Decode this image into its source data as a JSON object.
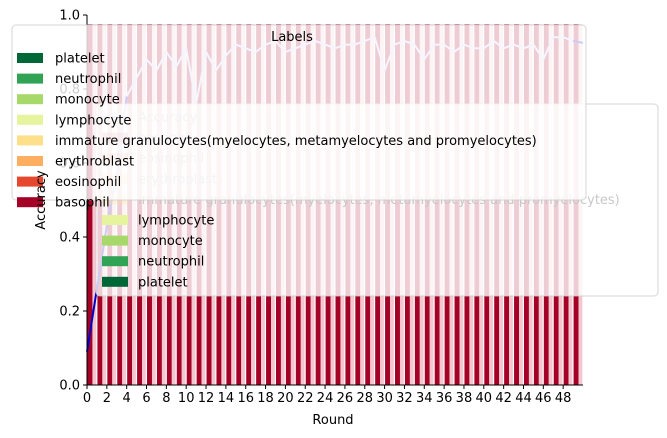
{
  "chart_data": {
    "type": "bar",
    "xlabel": "Round",
    "ylabel": "Accuracy",
    "xlim": [
      0,
      50
    ],
    "ylim": [
      0,
      1
    ],
    "x_ticks": [
      0,
      2,
      4,
      6,
      8,
      10,
      12,
      14,
      16,
      18,
      20,
      22,
      24,
      26,
      28,
      30,
      32,
      34,
      36,
      38,
      40,
      42,
      44,
      46,
      48
    ],
    "y_ticks": [
      0,
      0.2,
      0.4,
      0.6,
      0.8,
      1.0
    ],
    "y_tick_labels": [
      "0.0",
      "0.2",
      "0.4",
      "0.6",
      "0.8",
      "1.0"
    ],
    "rounds": [
      0,
      1,
      2,
      3,
      4,
      5,
      6,
      7,
      8,
      9,
      10,
      11,
      12,
      13,
      14,
      15,
      16,
      17,
      18,
      19,
      20,
      21,
      22,
      23,
      24,
      25,
      26,
      27,
      28,
      29,
      30,
      31,
      32,
      33,
      34,
      35,
      36,
      37,
      38,
      39,
      40,
      41,
      42,
      43,
      44,
      45,
      46,
      47,
      48,
      49
    ],
    "series": [
      {
        "name": "basophil",
        "color": "#a50026",
        "values": [
          0.975,
          0.975,
          0.975,
          0.975,
          0.975,
          0.975,
          0.975,
          0.975,
          0.975,
          0.975,
          0.975,
          0.975,
          0.975,
          0.975,
          0.975,
          0.975,
          0.975,
          0.975,
          0.975,
          0.975,
          0.975,
          0.975,
          0.975,
          0.975,
          0.975,
          0.975,
          0.975,
          0.975,
          0.975,
          0.975,
          0.975,
          0.975,
          0.975,
          0.975,
          0.975,
          0.975,
          0.975,
          0.975,
          0.975,
          0.975,
          0.975,
          0.975,
          0.975,
          0.975,
          0.975,
          0.975,
          0.975,
          0.975,
          0.975,
          0.975
        ]
      }
    ],
    "series_colors": {
      "shadow": "#f4c7cf"
    },
    "accuracy": [
      0.09,
      0.26,
      0.43,
      0.57,
      0.78,
      0.83,
      0.88,
      0.85,
      0.9,
      0.86,
      0.91,
      0.76,
      0.9,
      0.85,
      0.89,
      0.92,
      0.91,
      0.9,
      0.92,
      0.93,
      0.9,
      0.91,
      0.92,
      0.93,
      0.92,
      0.91,
      0.92,
      0.92,
      0.93,
      0.94,
      0.85,
      0.92,
      0.93,
      0.92,
      0.88,
      0.92,
      0.92,
      0.9,
      0.92,
      0.91,
      0.91,
      0.93,
      0.91,
      0.92,
      0.91,
      0.92,
      0.88,
      0.94,
      0.94,
      0.93
    ],
    "accuracy_split_round": 4
  },
  "legend_labels": {
    "title": "Labels",
    "entries": [
      {
        "label": "platelet",
        "color": "#006837"
      },
      {
        "label": "neutrophil",
        "color": "#31a354"
      },
      {
        "label": "monocyte",
        "color": "#a6d96a"
      },
      {
        "label": "lymphocyte",
        "color": "#e6f59d"
      },
      {
        "label": "immature granulocytes(myelocytes, metamyelocytes and promyelocytes)",
        "color": "#fee08b"
      },
      {
        "label": "erythroblast",
        "color": "#fdae61"
      },
      {
        "label": "eosinophil",
        "color": "#e5482f"
      },
      {
        "label": "basophil",
        "color": "#a50026"
      }
    ]
  },
  "legend_right": {
    "entries": [
      {
        "label": "Accuracy",
        "kind": "line",
        "color": "#0000cc"
      },
      {
        "label": "basophil",
        "color": "#a50026"
      },
      {
        "label": "eosinophil",
        "color": "#e5482f"
      },
      {
        "label": "erythroblast",
        "color": "#fdae61"
      },
      {
        "label": "immature granulocytes(myelocytes, metamyelocytes and promyelocytes)",
        "color": "#fee08b"
      },
      {
        "label": "lymphocyte",
        "color": "#e6f59d"
      },
      {
        "label": "monocyte",
        "color": "#a6d96a"
      },
      {
        "label": "neutrophil",
        "color": "#31a354"
      },
      {
        "label": "platelet",
        "color": "#006837"
      }
    ]
  }
}
